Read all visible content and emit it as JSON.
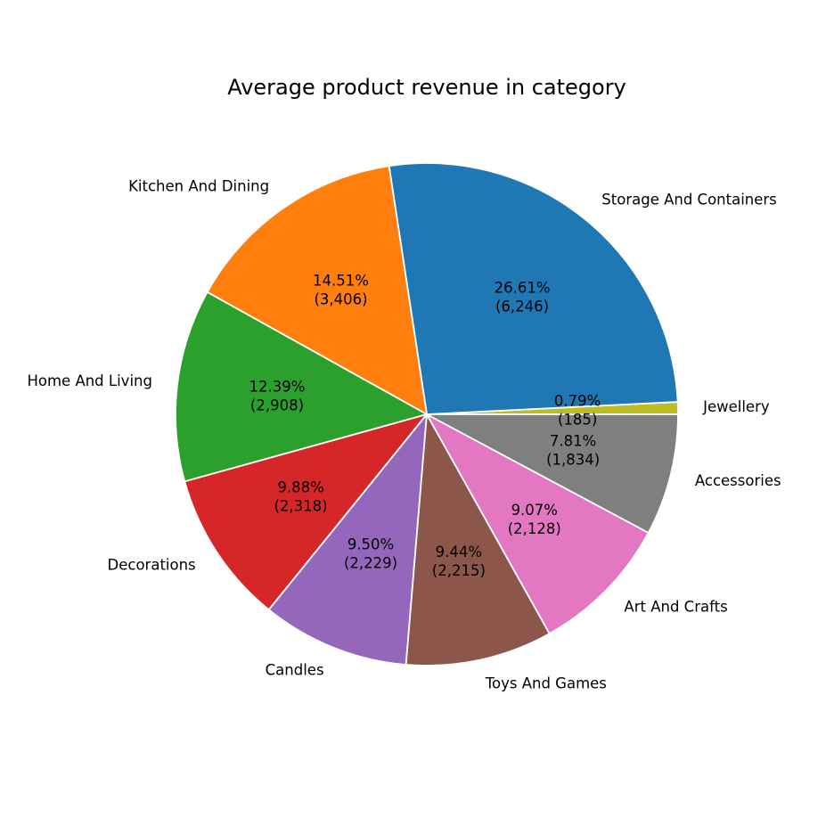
{
  "chart_data": {
    "type": "pie",
    "title": "Average product revenue in category",
    "start_angle_deg": 0,
    "direction": "counterclockwise",
    "slices": [
      {
        "label": "Jewellery",
        "value": 185,
        "percent_text": "0.79%",
        "value_text": "(185)",
        "color": "#bcbd22"
      },
      {
        "label": "Storage And Containers",
        "value": 6246,
        "percent_text": "26.61%",
        "value_text": "(6,246)",
        "color": "#1f77b4"
      },
      {
        "label": "Kitchen And Dining",
        "value": 3406,
        "percent_text": "14.51%",
        "value_text": "(3,406)",
        "color": "#ff7f0e"
      },
      {
        "label": "Home And Living",
        "value": 2908,
        "percent_text": "12.39%",
        "value_text": "(2,908)",
        "color": "#2ca02c"
      },
      {
        "label": "Decorations",
        "value": 2318,
        "percent_text": "9.88%",
        "value_text": "(2,318)",
        "color": "#d62728"
      },
      {
        "label": "Candles",
        "value": 2229,
        "percent_text": "9.50%",
        "value_text": "(2,229)",
        "color": "#9467bd"
      },
      {
        "label": "Toys And Games",
        "value": 2215,
        "percent_text": "9.44%",
        "value_text": "(2,215)",
        "color": "#8c564b"
      },
      {
        "label": "Art And Crafts",
        "value": 2128,
        "percent_text": "9.07%",
        "value_text": "(2,128)",
        "color": "#e377c2"
      },
      {
        "label": "Accessories",
        "value": 1834,
        "percent_text": "7.81%",
        "value_text": "(1,834)",
        "color": "#7f7f7f"
      }
    ]
  }
}
